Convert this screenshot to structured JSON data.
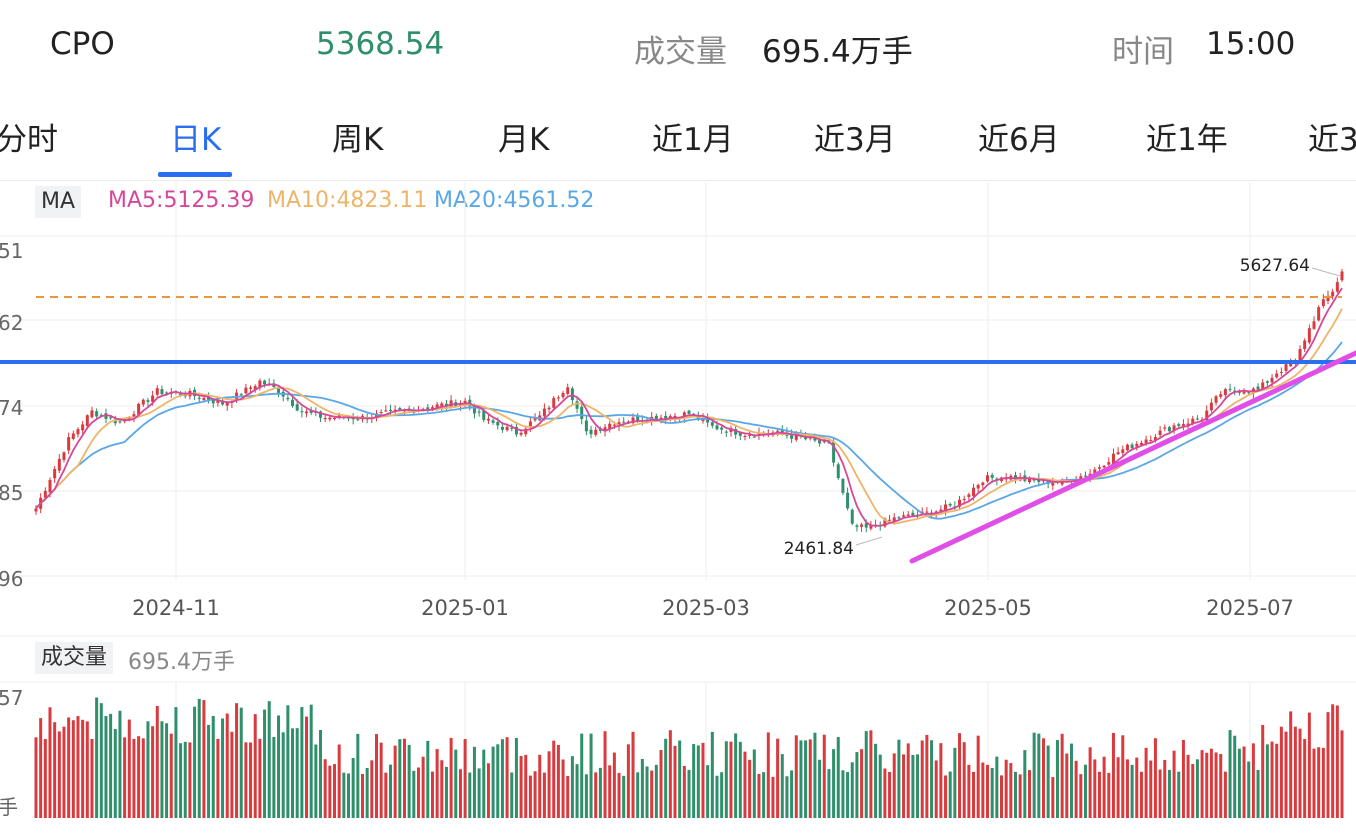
{
  "header": {
    "symbol": "CPO",
    "price": "5368.54",
    "volume_label": "成交量",
    "volume_value": "695.4万手",
    "time_label": "时间",
    "time_value": "15:00"
  },
  "tabs": [
    {
      "label": "分时",
      "active": false
    },
    {
      "label": "日K",
      "active": true
    },
    {
      "label": "周K",
      "active": false
    },
    {
      "label": "月K",
      "active": false
    },
    {
      "label": "近1月",
      "active": false
    },
    {
      "label": "近3月",
      "active": false
    },
    {
      "label": "近6月",
      "active": false
    },
    {
      "label": "近1年",
      "active": false
    },
    {
      "label": "近3",
      "active": false
    }
  ],
  "ma_legend": {
    "tag": "MA",
    "ma5": "MA5:5125.39",
    "ma10": "MA10:4823.11",
    "ma20": "MA20:4561.52"
  },
  "volume_legend": {
    "tag": "成交量",
    "value": "695.4万手"
  },
  "colors": {
    "up": "#d83a3e",
    "down": "#2e8f6a",
    "price": "#2e8f6a",
    "ma5": "#d6479a",
    "ma10": "#eeb46a",
    "ma20": "#5aa7e6",
    "accent": "#2a6ff0",
    "hline_dashed": "#f0963a",
    "trendline": "#e04ee8"
  },
  "chart_data": {
    "type": "candlestick",
    "x_tick_labels": [
      "2024-11",
      "2025-01",
      "2025-03",
      "2025-05",
      "2025-07"
    ],
    "y_tick_labels": [
      "51",
      "62",
      "74",
      "85",
      "96"
    ],
    "volume_y_tick_labels": [
      "57",
      "手"
    ],
    "annotations": {
      "high": "5627.64",
      "low": "2461.84"
    },
    "y_range": [
      2330,
      5720
    ],
    "volume_max": 100,
    "anchors": [
      [
        0,
        3020
      ],
      [
        3,
        3320
      ],
      [
        7,
        3700
      ],
      [
        12,
        3980
      ],
      [
        18,
        3870
      ],
      [
        26,
        4180
      ],
      [
        33,
        4150
      ],
      [
        40,
        4060
      ],
      [
        45,
        4190
      ],
      [
        48,
        4280
      ],
      [
        52,
        4190
      ],
      [
        57,
        3980
      ],
      [
        62,
        3920
      ],
      [
        70,
        3920
      ],
      [
        78,
        3980
      ],
      [
        85,
        4030
      ],
      [
        92,
        4080
      ],
      [
        96,
        3900
      ],
      [
        103,
        3770
      ],
      [
        108,
        3930
      ],
      [
        114,
        4250
      ],
      [
        118,
        3760
      ],
      [
        124,
        3880
      ],
      [
        130,
        3910
      ],
      [
        135,
        3930
      ],
      [
        140,
        3960
      ],
      [
        145,
        3830
      ],
      [
        152,
        3760
      ],
      [
        158,
        3770
      ],
      [
        164,
        3720
      ],
      [
        170,
        3640
      ],
      [
        175,
        2840
      ],
      [
        178,
        2820
      ],
      [
        184,
        2920
      ],
      [
        190,
        2960
      ],
      [
        197,
        3050
      ],
      [
        203,
        3310
      ],
      [
        208,
        3340
      ],
      [
        214,
        3290
      ],
      [
        220,
        3280
      ],
      [
        226,
        3370
      ],
      [
        232,
        3580
      ],
      [
        238,
        3710
      ],
      [
        244,
        3840
      ],
      [
        250,
        3920
      ],
      [
        254,
        4160
      ],
      [
        258,
        4200
      ],
      [
        262,
        4190
      ],
      [
        266,
        4370
      ],
      [
        270,
        4470
      ],
      [
        272,
        4700
      ],
      [
        275,
        5000
      ],
      [
        278,
        5180
      ],
      [
        280,
        5368.54
      ]
    ]
  }
}
